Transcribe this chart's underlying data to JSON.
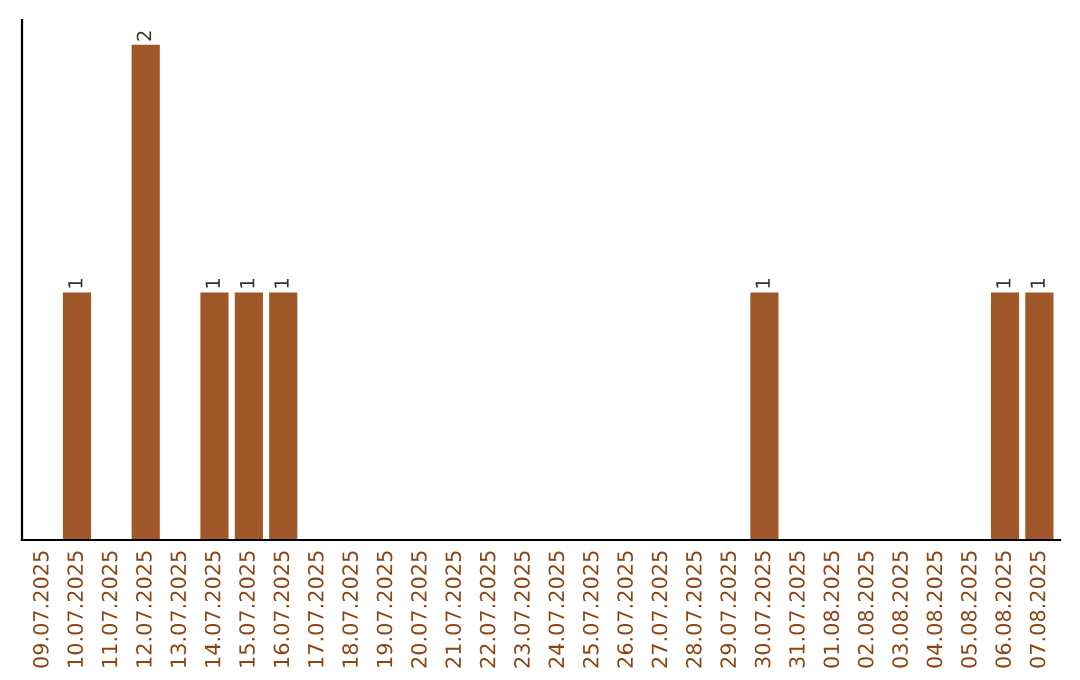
{
  "chart_data": {
    "type": "bar",
    "categories": [
      "09.07.2025",
      "10.07.2025",
      "11.07.2025",
      "12.07.2025",
      "13.07.2025",
      "14.07.2025",
      "15.07.2025",
      "16.07.2025",
      "17.07.2025",
      "18.07.2025",
      "19.07.2025",
      "20.07.2025",
      "21.07.2025",
      "22.07.2025",
      "23.07.2025",
      "24.07.2025",
      "25.07.2025",
      "26.07.2025",
      "27.07.2025",
      "28.07.2025",
      "29.07.2025",
      "30.07.2025",
      "31.07.2025",
      "01.08.2025",
      "02.08.2025",
      "03.08.2025",
      "04.08.2025",
      "05.08.2025",
      "06.08.2025",
      "07.08.2025"
    ],
    "values": [
      0,
      1,
      0,
      2,
      0,
      1,
      1,
      1,
      0,
      0,
      0,
      0,
      0,
      0,
      0,
      0,
      0,
      0,
      0,
      0,
      0,
      1,
      0,
      0,
      0,
      0,
      0,
      0,
      1,
      1
    ],
    "value_labels": [
      null,
      "1",
      null,
      "2",
      null,
      "1",
      "1",
      "1",
      null,
      null,
      null,
      null,
      null,
      null,
      null,
      null,
      null,
      null,
      null,
      null,
      null,
      "1",
      null,
      null,
      null,
      null,
      null,
      null,
      "1",
      "1"
    ],
    "color": "#a0582a",
    "tick_labels": "x",
    "grid": false,
    "legend": false
  }
}
